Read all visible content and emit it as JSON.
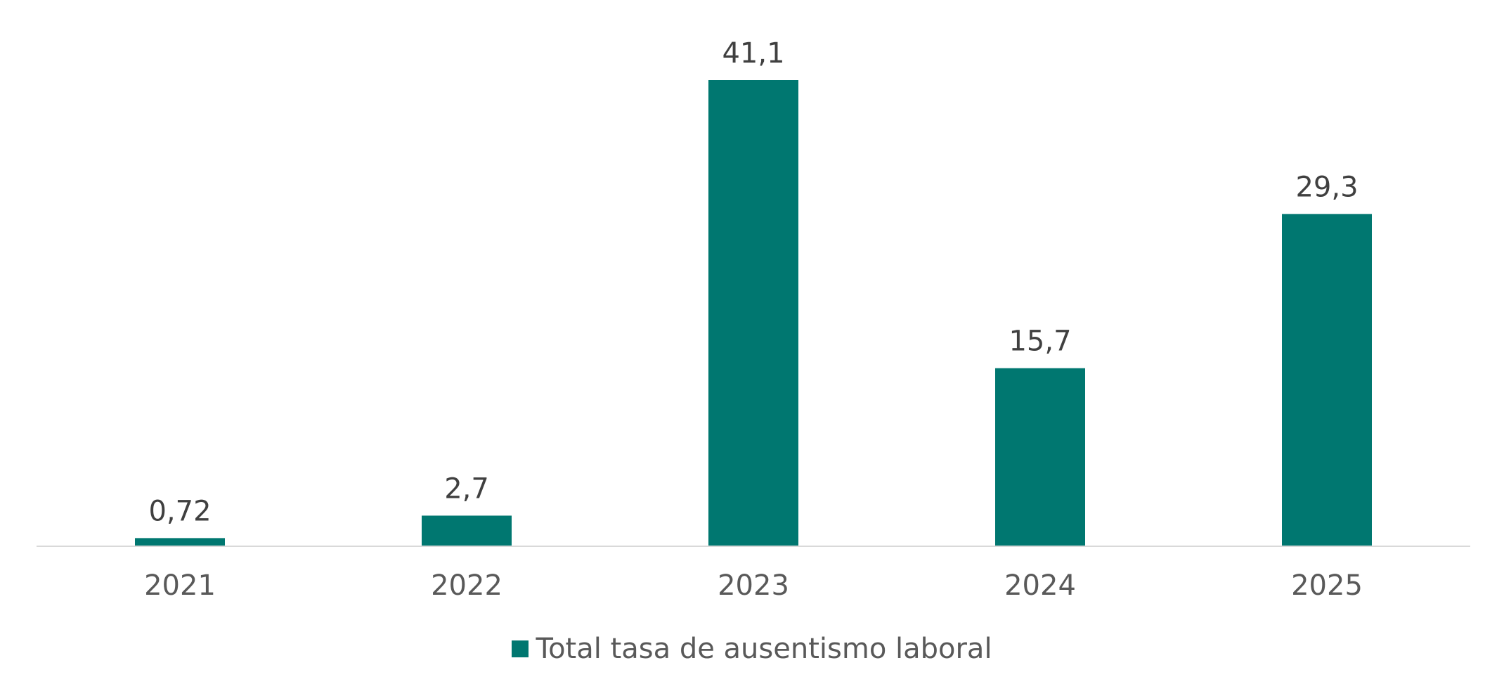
{
  "chart_data": {
    "type": "bar",
    "title": "",
    "xlabel": "",
    "ylabel": "",
    "categories": [
      "2021",
      "2022",
      "2023",
      "2024",
      "2025"
    ],
    "series": [
      {
        "name": "Total tasa de ausentismo laboral",
        "values": [
          0.72,
          2.7,
          41.1,
          15.7,
          29.3
        ],
        "labels": [
          "0,72",
          "2,7",
          "41,1",
          "15,7",
          "29,3"
        ],
        "color": "#007770"
      }
    ],
    "ylim": [
      0,
      41.1
    ],
    "grid": false,
    "legend_position": "bottom"
  },
  "colors": {
    "bar": "#007770",
    "axis_line": "#d9d9d9",
    "data_label": "#404040",
    "tick_label": "#595959"
  }
}
